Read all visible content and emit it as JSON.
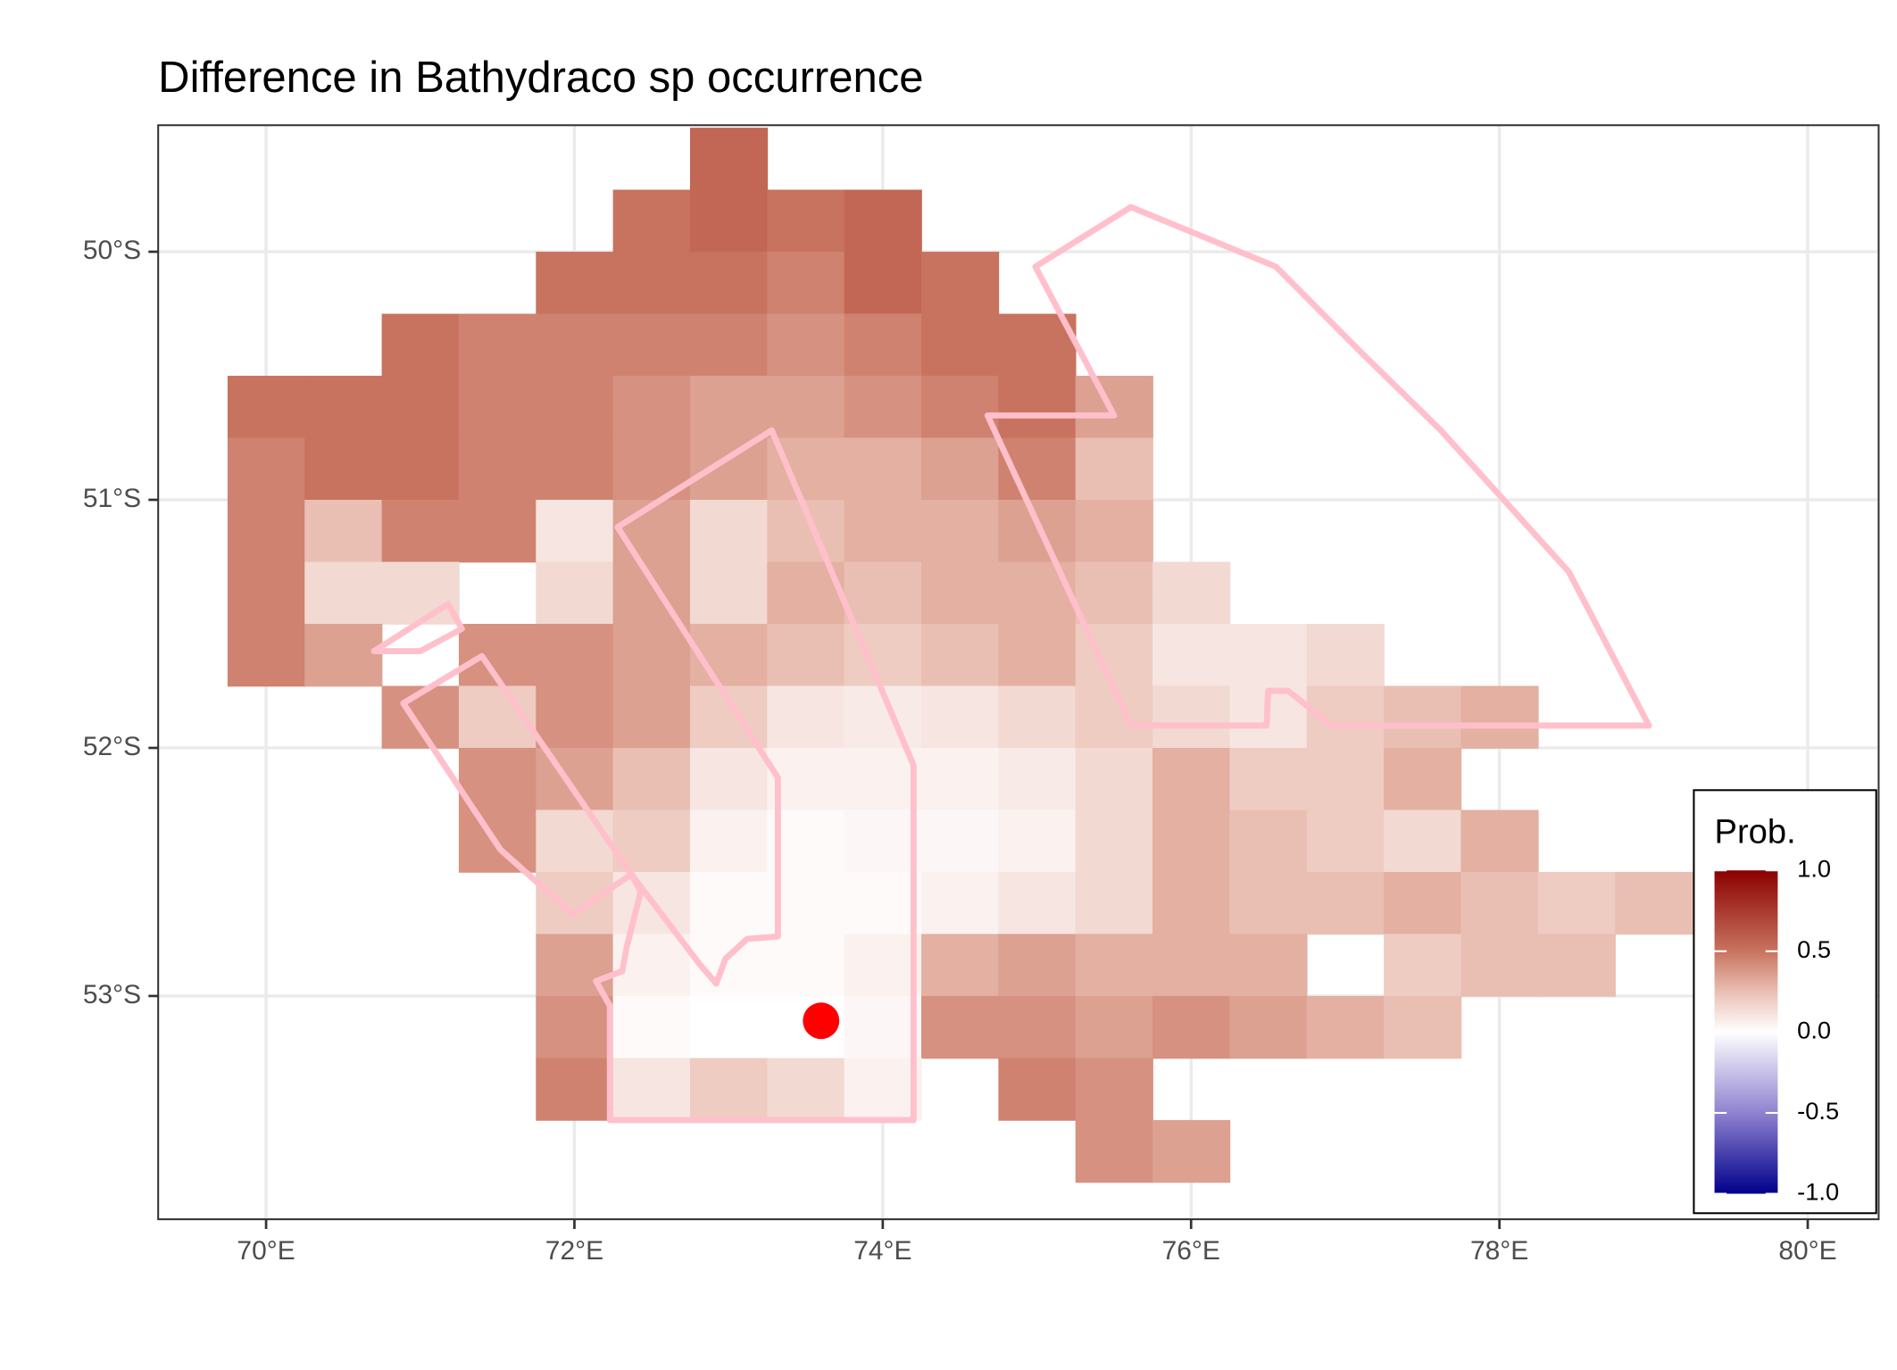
{
  "chart_data": {
    "type": "raster-map",
    "title": "Difference in  Bathydraco sp occurrence",
    "xlim": [
      69.3,
      80.46
    ],
    "ylim": [
      -53.9,
      -49.49
    ],
    "xticks": [
      {
        "value": 70,
        "label": "70°E"
      },
      {
        "value": 72,
        "label": "72°E"
      },
      {
        "value": 74,
        "label": "74°E"
      },
      {
        "value": 76,
        "label": "76°E"
      },
      {
        "value": 78,
        "label": "78°E"
      },
      {
        "value": 80,
        "label": "80°E"
      }
    ],
    "yticks": [
      {
        "value": -50,
        "label": "50°S"
      },
      {
        "value": -51,
        "label": "51°S"
      },
      {
        "value": -52,
        "label": "52°S"
      },
      {
        "value": -53,
        "label": "53°S"
      }
    ],
    "grid": true,
    "raster": {
      "lon0": 69.75,
      "dlon": 0.5,
      "lat0": -49.5,
      "dlat": -0.25,
      "rows": [
        [
          null,
          null,
          null,
          null,
          null,
          null,
          0.55,
          null,
          null,
          null,
          null,
          null,
          null,
          null,
          null,
          null,
          null,
          null,
          null
        ],
        [
          null,
          null,
          null,
          null,
          null,
          0.5,
          0.55,
          0.5,
          0.55,
          null,
          null,
          null,
          null,
          null,
          null,
          null,
          null,
          null,
          null
        ],
        [
          null,
          null,
          null,
          null,
          0.5,
          0.5,
          0.5,
          0.45,
          0.55,
          0.5,
          null,
          null,
          null,
          null,
          null,
          null,
          null,
          null,
          null
        ],
        [
          null,
          null,
          0.5,
          0.45,
          0.45,
          0.45,
          0.45,
          0.4,
          0.45,
          0.5,
          0.5,
          null,
          null,
          null,
          null,
          null,
          null,
          null,
          null
        ],
        [
          0.5,
          0.5,
          0.5,
          0.45,
          0.45,
          0.4,
          0.35,
          0.35,
          0.4,
          0.45,
          0.5,
          0.35,
          null,
          null,
          null,
          null,
          null,
          null,
          null
        ],
        [
          0.45,
          0.5,
          0.5,
          0.45,
          0.45,
          0.4,
          0.35,
          0.3,
          0.3,
          0.35,
          0.45,
          0.25,
          null,
          null,
          null,
          null,
          null,
          null,
          null
        ],
        [
          0.45,
          0.25,
          0.45,
          0.45,
          0.1,
          0.35,
          0.15,
          0.25,
          0.3,
          0.3,
          0.35,
          0.3,
          null,
          null,
          null,
          null,
          null,
          null,
          null
        ],
        [
          0.45,
          0.15,
          0.15,
          null,
          0.15,
          0.35,
          0.15,
          0.3,
          0.25,
          0.3,
          0.3,
          0.25,
          0.15,
          null,
          null,
          null,
          null,
          null,
          null
        ],
        [
          0.45,
          0.35,
          null,
          0.4,
          0.4,
          0.35,
          0.3,
          0.25,
          0.2,
          0.25,
          0.3,
          0.2,
          0.1,
          0.1,
          0.15,
          null,
          null,
          null,
          null
        ],
        [
          null,
          null,
          0.4,
          0.2,
          0.4,
          0.35,
          0.2,
          0.1,
          0.08,
          0.1,
          0.15,
          0.2,
          0.15,
          0.1,
          0.2,
          0.25,
          0.3,
          null,
          null
        ],
        [
          null,
          null,
          null,
          0.4,
          0.35,
          0.25,
          0.1,
          0.05,
          0.05,
          0.05,
          0.08,
          0.15,
          0.3,
          0.2,
          0.2,
          0.3,
          null,
          null,
          null
        ],
        [
          null,
          null,
          null,
          0.4,
          0.15,
          0.2,
          0.05,
          0.02,
          0.03,
          0.03,
          0.05,
          0.15,
          0.3,
          0.25,
          0.2,
          0.15,
          0.3,
          null,
          null
        ],
        [
          null,
          null,
          null,
          null,
          0.2,
          0.1,
          0.02,
          0.02,
          0.02,
          0.05,
          0.1,
          0.15,
          0.3,
          0.25,
          0.25,
          0.3,
          0.25,
          0.2,
          0.25
        ],
        [
          null,
          null,
          null,
          null,
          0.35,
          0.05,
          0.02,
          0.02,
          0.05,
          0.3,
          0.35,
          0.3,
          0.3,
          0.3,
          null,
          0.2,
          0.25,
          0.25,
          null
        ],
        [
          null,
          null,
          null,
          null,
          0.4,
          0.02,
          0,
          0,
          0.03,
          0.4,
          0.4,
          0.35,
          0.4,
          0.35,
          0.3,
          0.25,
          null,
          null,
          null
        ],
        [
          null,
          null,
          null,
          null,
          0.45,
          0.1,
          0.2,
          0.15,
          0.05,
          null,
          0.45,
          0.4,
          null,
          null,
          null,
          null,
          null,
          null,
          null
        ],
        [
          null,
          null,
          null,
          null,
          null,
          null,
          null,
          null,
          null,
          null,
          null,
          0.4,
          0.35,
          null,
          null,
          null,
          null,
          null,
          null
        ]
      ]
    },
    "colorscale": [
      [
        -1,
        "#00008b"
      ],
      [
        -0.5,
        "#8f82d0"
      ],
      [
        0,
        "#ffffff"
      ],
      [
        0.25,
        "#eabfb3"
      ],
      [
        0.5,
        "#c8735f"
      ],
      [
        1,
        "#8b0000"
      ]
    ],
    "polygon_color": "#ffc0cb",
    "polygons": [
      [
        [
          74.99,
          -50.06
        ],
        [
          75.61,
          -49.82
        ],
        [
          76.55,
          -50.06
        ],
        [
          77.11,
          -50.41
        ],
        [
          77.62,
          -50.72
        ],
        [
          78.45,
          -51.29
        ],
        [
          78.97,
          -51.91
        ],
        [
          76.91,
          -51.91
        ],
        [
          76.75,
          -51.83
        ],
        [
          76.63,
          -51.77
        ],
        [
          76.5,
          -51.77
        ],
        [
          76.49,
          -51.91
        ],
        [
          75.61,
          -51.91
        ],
        [
          74.68,
          -50.66
        ],
        [
          75.5,
          -50.66
        ]
      ],
      [
        [
          73.28,
          -50.72
        ],
        [
          74.2,
          -52.07
        ],
        [
          74.2,
          -53.5
        ],
        [
          72.23,
          -53.5
        ],
        [
          72.23,
          -53.04
        ],
        [
          72.14,
          -52.94
        ],
        [
          72.31,
          -52.9
        ],
        [
          72.34,
          -52.8
        ],
        [
          72.43,
          -52.58
        ],
        [
          72.37,
          -52.51
        ],
        [
          72.81,
          -52.87
        ],
        [
          72.92,
          -52.95
        ],
        [
          72.98,
          -52.85
        ],
        [
          73.12,
          -52.77
        ],
        [
          73.32,
          -52.76
        ],
        [
          73.32,
          -52.12
        ],
        [
          72.28,
          -51.11
        ]
      ],
      [
        [
          70.89,
          -51.82
        ],
        [
          71.4,
          -51.63
        ],
        [
          72.37,
          -52.51
        ],
        [
          71.99,
          -52.67
        ],
        [
          71.52,
          -52.41
        ]
      ],
      [
        [
          70.7,
          -51.61
        ],
        [
          71.18,
          -51.42
        ],
        [
          71.27,
          -51.52
        ],
        [
          71,
          -51.61
        ]
      ]
    ],
    "point": {
      "lon": 73.6,
      "lat": -53.1,
      "color": "#ff0000"
    },
    "legend": {
      "title": "Prob.",
      "limits": [
        -1,
        1
      ],
      "ticks": [
        {
          "value": 1,
          "label": "1.0"
        },
        0.5,
        {
          "value": 0,
          "label": "0.0"
        },
        -0.5,
        {
          "value": -1,
          "label": "-1.0"
        }
      ]
    }
  }
}
